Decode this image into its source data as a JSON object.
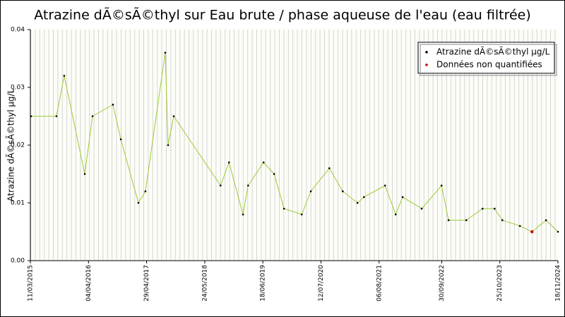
{
  "chart_data": {
    "type": "line",
    "title": "Atrazine dÃ©sÃ©thyl sur Eau brute / phase aqueuse de l'eau (eau filtrée)",
    "y_label": "Atrazine dÃ©sÃ©thyl µg/L",
    "x": [
      "16/03/2015",
      "02/09/2015",
      "24/10/2015",
      "10/03/2016",
      "01/05/2016",
      "15/09/2016",
      "07/11/2016",
      "05/03/2017",
      "21/04/2017",
      "01/09/2017",
      "20/09/2017",
      "28/10/2017",
      "07/09/2018",
      "03/11/2018",
      "05/02/2019",
      "11/03/2019",
      "23/06/2019",
      "02/09/2019",
      "07/11/2019",
      "05/03/2020",
      "05/05/2020",
      "06/09/2020",
      "05/12/2020",
      "14/03/2021",
      "26/04/2021",
      "15/09/2021",
      "25/11/2021",
      "11/01/2022",
      "19/05/2022",
      "29/09/2022",
      "15/11/2022",
      "14/03/2023",
      "01/07/2023",
      "20/09/2023",
      "11/11/2023",
      "08/03/2024",
      "28/05/2024",
      "30/08/2024",
      "18/11/2024"
    ],
    "series": [
      {
        "name": "Atrazine dÃ©sÃ©thyl µg/L",
        "color": "#99cc33",
        "marker_color": "#000000",
        "values": [
          0.025,
          0.025,
          0.032,
          0.015,
          0.025,
          0.027,
          0.021,
          0.01,
          0.012,
          0.036,
          0.02,
          0.025,
          0.013,
          0.017,
          0.008,
          0.013,
          0.017,
          0.015,
          0.009,
          0.008,
          0.012,
          0.016,
          0.012,
          0.01,
          0.011,
          0.013,
          0.008,
          0.011,
          0.009,
          0.013,
          0.007,
          0.007,
          0.009,
          0.009,
          0.007,
          0.006,
          0.005,
          0.007,
          0.005
        ]
      },
      {
        "name": "Données non quantifiées",
        "color": "#cc0000",
        "values": [
          null,
          null,
          null,
          null,
          null,
          null,
          null,
          null,
          null,
          null,
          null,
          null,
          null,
          null,
          null,
          null,
          null,
          null,
          null,
          null,
          null,
          null,
          null,
          null,
          null,
          null,
          null,
          null,
          null,
          null,
          null,
          null,
          null,
          null,
          null,
          null,
          0.005,
          null,
          null
        ]
      }
    ],
    "xlim": [
      "11/03/2015",
      "18/11/2024"
    ],
    "xticks": [
      "11/03/2015",
      "04/04/2016",
      "29/04/2017",
      "24/05/2018",
      "18/06/2019",
      "12/07/2020",
      "06/08/2021",
      "30/09/2022",
      "25/10/2023",
      "18/11/2024"
    ],
    "ylim": [
      0,
      0.04
    ],
    "yticks": [
      {
        "value": 0,
        "label": "0.00"
      },
      {
        "value": 0.01,
        "label": "0.01"
      },
      {
        "value": 0.02,
        "label": "0.02"
      },
      {
        "value": 0.03,
        "label": "0.03"
      },
      {
        "value": 0.04,
        "label": "0.04"
      }
    ],
    "legend": "top-right"
  }
}
